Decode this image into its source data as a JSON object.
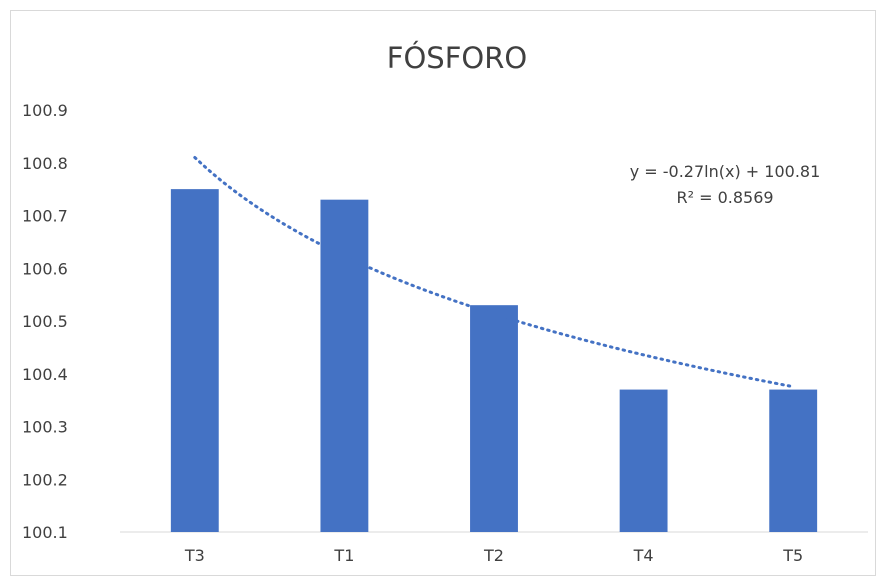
{
  "chart_data": {
    "type": "bar",
    "title": "FÓSFORO",
    "categories": [
      "T3",
      "T1",
      "T2",
      "T4",
      "T5"
    ],
    "values": [
      100.75,
      100.73,
      100.53,
      100.37,
      100.37
    ],
    "ylim": [
      100.1,
      100.9
    ],
    "yticks": [
      "100.1",
      "100.2",
      "100.3",
      "100.4",
      "100.5",
      "100.6",
      "100.7",
      "100.8",
      "100.9"
    ],
    "grid": false,
    "legend": "none",
    "bar_color": "#4472C4",
    "trendline": {
      "type": "logarithmic",
      "a": -0.27,
      "b": 100.81,
      "equation": "y = -0.27ln(x) + 100.81",
      "r2": "R² = 0.8569",
      "color": "#4472C4"
    }
  }
}
